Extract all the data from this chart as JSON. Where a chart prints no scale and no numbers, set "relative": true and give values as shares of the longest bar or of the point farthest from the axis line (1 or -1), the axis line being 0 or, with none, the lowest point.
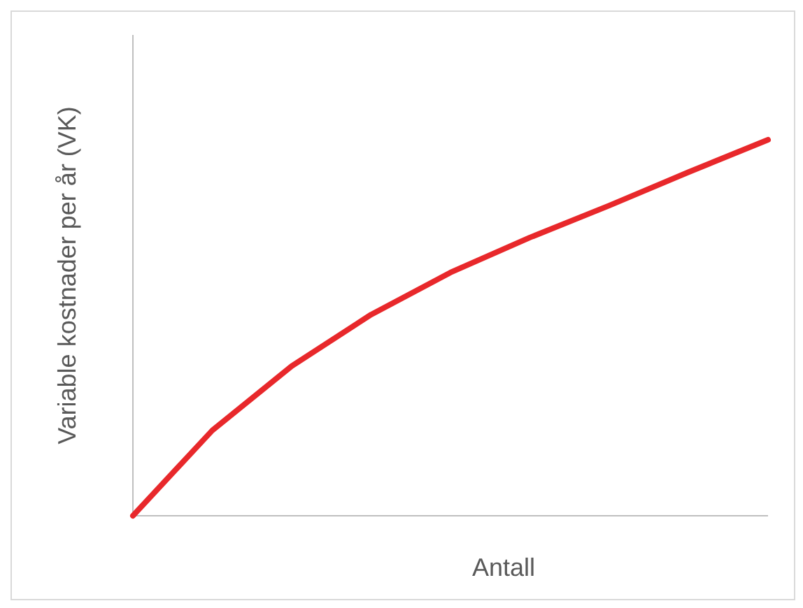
{
  "chart_data": {
    "type": "line",
    "relative": true,
    "xlabel": "Antall",
    "ylabel": "Variable kostnader per år (VK)",
    "categories": [
      null,
      null,
      null,
      null,
      null,
      null,
      null,
      null,
      null
    ],
    "series": [
      {
        "color": "#e8282b",
        "values": [
          0,
          0.227,
          0.398,
          0.535,
          0.647,
          0.74,
          0.825,
          0.914,
          1
        ]
      }
    ],
    "marker": "none",
    "line_style": "solid"
  }
}
